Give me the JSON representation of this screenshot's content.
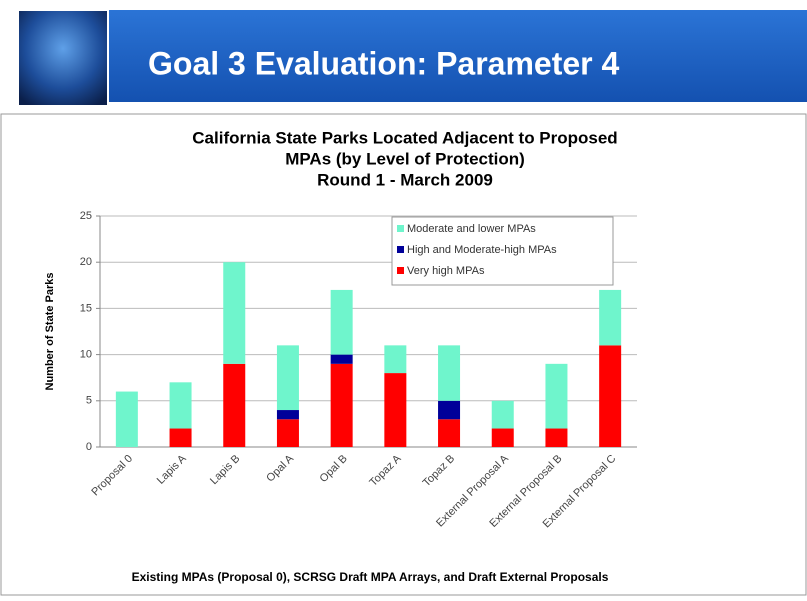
{
  "slide": {
    "title": "Goal 3 Evaluation: Parameter 4"
  },
  "chart_data": {
    "type": "stacked-bar",
    "title": [
      "California State Parks Located Adjacent to Proposed",
      "MPAs (by Level of Protection)",
      "Round 1 - March 2009"
    ],
    "x_label": "Existing MPAs (Proposal 0), SCRSG Draft MPA Arrays, and Draft External Proposals",
    "y_label": "Number of State Parks",
    "categories": [
      "Proposal 0",
      "Lapis A",
      "Lapis B",
      "Opal A",
      "Opal B",
      "Topaz A",
      "Topaz B",
      "External Proposal A",
      "External Proposal B",
      "External Proposal C"
    ],
    "series": [
      {
        "name": "Very high MPAs",
        "color": "#ff0000",
        "values": [
          0,
          2,
          9,
          3,
          9,
          8,
          3,
          2,
          2,
          11
        ]
      },
      {
        "name": "High and Moderate-high MPAs",
        "color": "#000099",
        "values": [
          0,
          0,
          0,
          1,
          1,
          0,
          2,
          0,
          0,
          0
        ]
      },
      {
        "name": "Moderate and lower MPAs",
        "color": "#6ff5cc",
        "values": [
          6,
          5,
          11,
          7,
          7,
          3,
          6,
          3,
          7,
          6
        ]
      }
    ],
    "ylim": [
      0,
      25
    ],
    "yticks": [
      0,
      5,
      10,
      15,
      20,
      25
    ],
    "grid": true,
    "legend": "upper-right"
  }
}
